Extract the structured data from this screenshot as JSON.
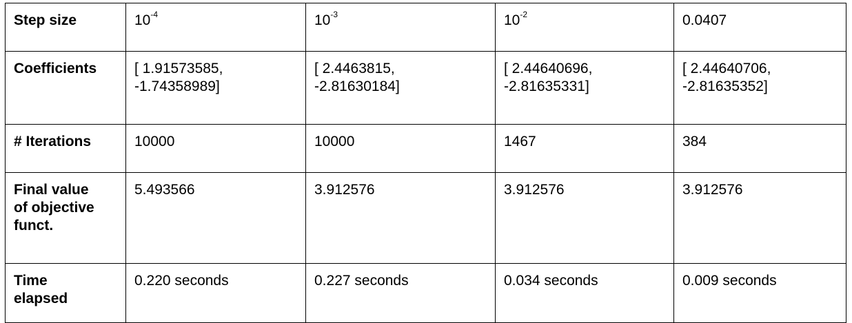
{
  "table": {
    "step_size": {
      "header": "Step size",
      "values": [
        {
          "base": "10",
          "exp": "-4"
        },
        {
          "base": "10",
          "exp": "-3"
        },
        {
          "base": "10",
          "exp": "-2"
        },
        {
          "base": "0.0407",
          "exp": ""
        }
      ]
    },
    "coefficients": {
      "header": "Coefficients",
      "values": [
        "[ 1.91573585,\n-1.74358989]",
        "[ 2.4463815,\n-2.81630184]",
        "[ 2.44640696,\n-2.81635331]",
        "[ 2.44640706,\n-2.81635352]"
      ]
    },
    "iterations": {
      "header": "# Iterations",
      "values": [
        "10000",
        "10000",
        "1467",
        "384"
      ]
    },
    "final_value": {
      "header": "Final value\nof objective\nfunct.",
      "values": [
        "5.493566",
        "3.912576",
        "3.912576",
        "3.912576"
      ]
    },
    "time_elapsed": {
      "header": "Time\nelapsed",
      "values": [
        "0.220 seconds",
        "0.227 seconds",
        "0.034 seconds",
        "0.009 seconds"
      ]
    }
  }
}
